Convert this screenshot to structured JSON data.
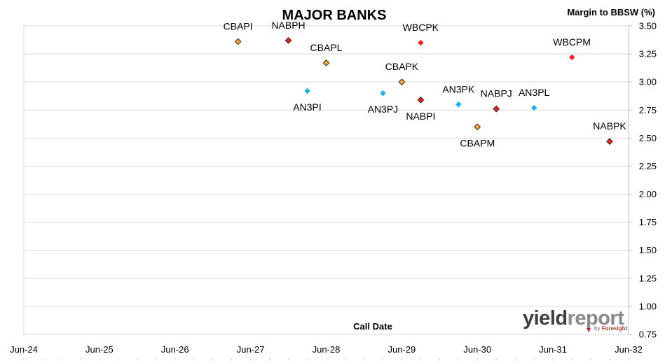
{
  "chart_data": {
    "type": "scatter",
    "title": "MAJOR BANKS",
    "xlabel": "Call Date",
    "ylabel": "Margin to BBSW (%)",
    "x_ticks": [
      "Jun-24",
      "Jun-25",
      "Jun-26",
      "Jun-27",
      "Jun-28",
      "Jun-29",
      "Jun-30",
      "Jun-31",
      "Jun-32"
    ],
    "xlim": [
      "2024-06",
      "2032-06"
    ],
    "ylim": [
      0.75,
      3.5
    ],
    "y_ticks": [
      "0.75",
      "1.00",
      "1.25",
      "1.50",
      "1.75",
      "2.00",
      "2.25",
      "2.50",
      "2.75",
      "3.00",
      "3.25",
      "3.50"
    ],
    "grid": "horizontal",
    "series": [
      {
        "color": "#f2a93b",
        "points": [
          {
            "label": "CBAPI",
            "x": "2027-04",
            "y": 3.36,
            "label_pos": "above"
          },
          {
            "label": "CBAPL",
            "x": "2028-06",
            "y": 3.17,
            "label_pos": "above"
          },
          {
            "label": "CBAPK",
            "x": "2029-06",
            "y": 3.0,
            "label_pos": "above"
          },
          {
            "label": "CBAPM",
            "x": "2030-06",
            "y": 2.6,
            "label_pos": "below"
          }
        ]
      },
      {
        "color": "#e8202a",
        "points": [
          {
            "label": "NABPH",
            "x": "2027-12",
            "y": 3.37,
            "label_pos": "above"
          },
          {
            "label": "NABPI",
            "x": "2029-09",
            "y": 2.84,
            "label_pos": "below"
          },
          {
            "label": "NABPJ",
            "x": "2030-09",
            "y": 2.76,
            "label_pos": "above"
          },
          {
            "label": "NABPK",
            "x": "2032-03",
            "y": 2.47,
            "label_pos": "above"
          }
        ]
      },
      {
        "color": "#ff2020",
        "points": [
          {
            "label": "WBCPK",
            "x": "2029-09",
            "y": 3.35,
            "label_pos": "above"
          },
          {
            "label": "WBCPM",
            "x": "2031-09",
            "y": 3.22,
            "label_pos": "above"
          }
        ]
      },
      {
        "color": "#1ab4e8",
        "points": [
          {
            "label": "AN3PI",
            "x": "2028-03",
            "y": 2.92,
            "label_pos": "below"
          },
          {
            "label": "AN3PJ",
            "x": "2029-03",
            "y": 2.9,
            "label_pos": "below"
          },
          {
            "label": "AN3PK",
            "x": "2030-03",
            "y": 2.8,
            "label_pos": "above"
          },
          {
            "label": "AN3PL",
            "x": "2031-03",
            "y": 2.77,
            "label_pos": "above"
          }
        ]
      }
    ]
  },
  "logo": {
    "word1": "yield",
    "word2": "report",
    "sub": "by",
    "brand": "Foresight"
  }
}
